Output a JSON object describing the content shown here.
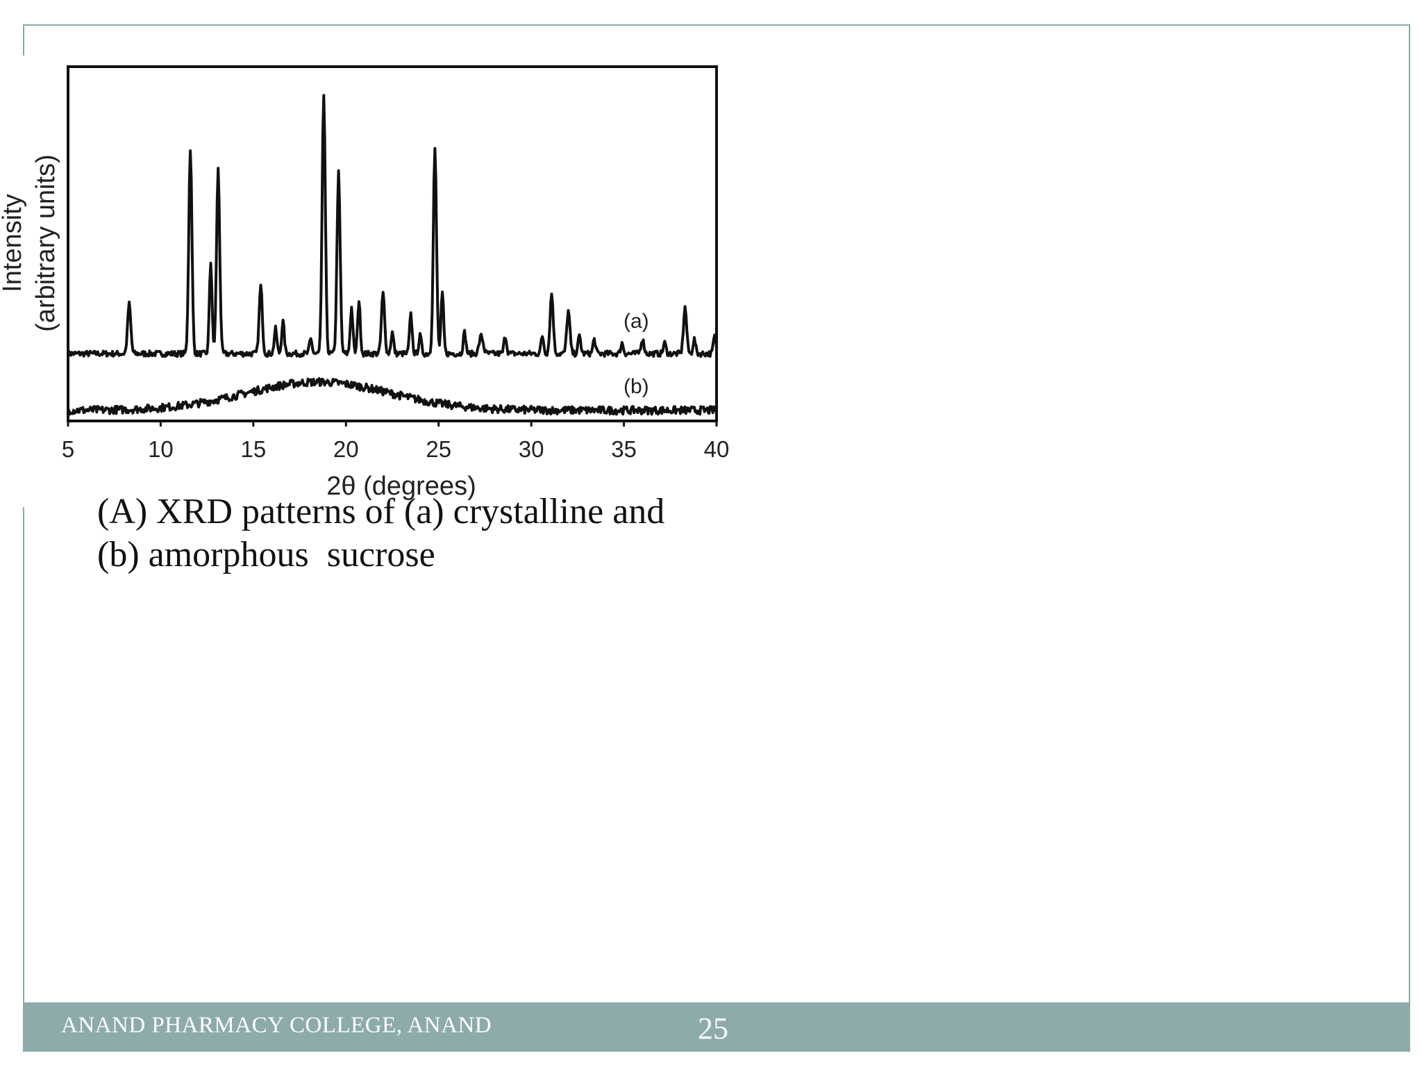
{
  "chart_data": {
    "type": "line",
    "title": "",
    "xlabel": "2θ (degrees)",
    "ylabel_line1": "Intensity",
    "ylabel_line2": "(arbitrary units)",
    "xlim": [
      5,
      40
    ],
    "ylim": [
      0,
      100
    ],
    "x_ticks": [
      "5",
      "10",
      "15",
      "20",
      "25",
      "30",
      "35",
      "40"
    ],
    "grid": false,
    "legend": "none",
    "series": [
      {
        "name": "(a)",
        "baseline": 19,
        "peaks": [
          [
            8.3,
            14,
            0.12
          ],
          [
            11.6,
            58,
            0.12
          ],
          [
            12.7,
            26,
            0.1
          ],
          [
            13.1,
            52,
            0.12
          ],
          [
            15.4,
            19,
            0.12
          ],
          [
            16.2,
            7,
            0.1
          ],
          [
            16.6,
            9,
            0.1
          ],
          [
            18.1,
            4,
            0.1
          ],
          [
            18.8,
            73,
            0.12
          ],
          [
            19.6,
            51,
            0.12
          ],
          [
            20.3,
            13,
            0.1
          ],
          [
            20.7,
            15,
            0.1
          ],
          [
            22.0,
            17,
            0.12
          ],
          [
            22.5,
            6,
            0.1
          ],
          [
            23.5,
            11,
            0.1
          ],
          [
            24.0,
            5,
            0.1
          ],
          [
            24.8,
            58,
            0.12
          ],
          [
            25.2,
            17,
            0.1
          ],
          [
            26.4,
            6,
            0.1
          ],
          [
            27.3,
            5,
            0.15
          ],
          [
            28.6,
            5,
            0.1
          ],
          [
            30.6,
            5,
            0.1
          ],
          [
            31.1,
            17,
            0.12
          ],
          [
            32.0,
            12,
            0.12
          ],
          [
            32.6,
            5,
            0.1
          ],
          [
            33.4,
            4,
            0.1
          ],
          [
            34.9,
            3,
            0.1
          ],
          [
            36.0,
            4,
            0.12
          ],
          [
            37.2,
            3,
            0.1
          ],
          [
            38.3,
            13,
            0.12
          ],
          [
            38.8,
            4,
            0.1
          ],
          [
            39.9,
            5,
            0.1
          ]
        ]
      },
      {
        "name": "(b)",
        "baseline": 3,
        "hump": {
          "center": 18.5,
          "width": 5.5,
          "height": 8
        }
      }
    ]
  },
  "caption": {
    "line1": "(A) XRD patterns of (a) crystalline and",
    "line2": "(b) amorphous  sucrose"
  },
  "footer": {
    "college": "ANAND PHARMACY COLLEGE, ANAND",
    "page_number": "25"
  },
  "colors": {
    "accent": "#8eabab",
    "trace": "#111111"
  }
}
